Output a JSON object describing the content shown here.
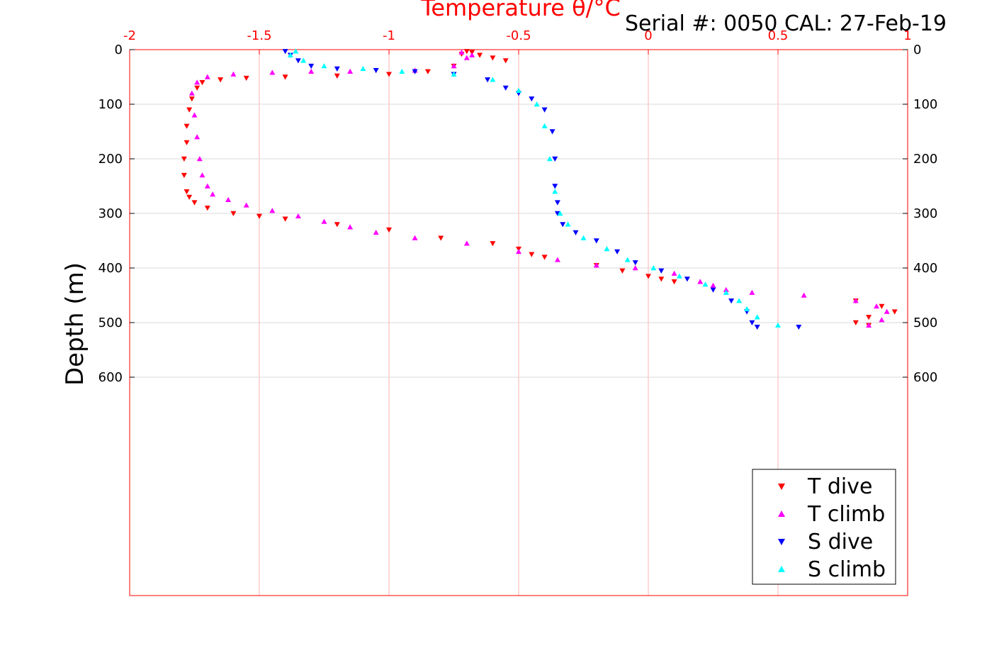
{
  "header": {
    "serial_text": "Serial #: 0050  CAL: 27-Feb-19"
  },
  "colors": {
    "T dive": "#ff0000",
    "T climb": "#ff00ff",
    "S dive": "#0000ff",
    "S climb": "#00ffff",
    "axis": "#ff0000",
    "grid": "#ffb0b0"
  },
  "chart_data": {
    "type": "scatter",
    "title": "Temperature θ/°C",
    "xlabel": "Temperature θ/°C",
    "ylabel": "Depth (m)",
    "xlim": [
      -2,
      1
    ],
    "ylim": [
      0,
      1000
    ],
    "y_reversed": true,
    "x_axis_position": "top",
    "x_ticks": [
      -2,
      -1.5,
      -1,
      -0.5,
      0,
      0.5,
      1
    ],
    "x_tick_labels": [
      "-2",
      "-1.5",
      "-1",
      "-0.5",
      "0",
      "0.5",
      "1"
    ],
    "y_ticks": [
      0,
      100,
      200,
      300,
      400,
      500,
      600
    ],
    "y_tick_labels": [
      "0",
      "100",
      "200",
      "300",
      "400",
      "500",
      "600"
    ],
    "grid": true,
    "legend_position": "bottom-right",
    "series": [
      {
        "name": "T dive",
        "marker": "triangle-down",
        "x": [
          -0.55,
          -0.6,
          -0.65,
          -0.68,
          -0.7,
          -0.72,
          -0.75,
          -0.85,
          -1.0,
          -1.2,
          -1.4,
          -1.55,
          -1.65,
          -1.72,
          -1.74,
          -1.76,
          -1.77,
          -1.78,
          -1.78,
          -1.79,
          -1.79,
          -1.78,
          -1.77,
          -1.75,
          -1.7,
          -1.6,
          -1.5,
          -1.4,
          -1.2,
          -1.0,
          -0.8,
          -0.6,
          -0.5,
          -0.45,
          -0.4,
          -0.2,
          -0.1,
          0.0,
          0.05,
          0.1,
          0.8,
          0.9,
          0.95,
          0.85,
          0.8,
          0.85
        ],
        "y": [
          20,
          15,
          10,
          5,
          3,
          8,
          30,
          40,
          45,
          48,
          50,
          52,
          55,
          60,
          70,
          90,
          110,
          140,
          170,
          200,
          230,
          260,
          270,
          280,
          290,
          300,
          305,
          310,
          320,
          330,
          345,
          355,
          365,
          375,
          380,
          395,
          405,
          415,
          420,
          425,
          460,
          470,
          480,
          490,
          500,
          505
        ]
      },
      {
        "name": "T climb",
        "marker": "triangle-up",
        "x": [
          0.85,
          0.9,
          0.92,
          0.88,
          0.8,
          0.6,
          0.4,
          0.3,
          0.25,
          0.2,
          0.1,
          -0.05,
          -0.2,
          -0.35,
          -0.5,
          -0.7,
          -0.9,
          -1.05,
          -1.15,
          -1.25,
          -1.35,
          -1.45,
          -1.55,
          -1.62,
          -1.68,
          -1.7,
          -1.72,
          -1.73,
          -1.74,
          -1.75,
          -1.76,
          -1.74,
          -1.7,
          -1.6,
          -1.45,
          -1.3,
          -1.15,
          -0.9,
          -0.75,
          -0.7,
          -0.72,
          -0.68
        ],
        "y": [
          505,
          495,
          480,
          470,
          460,
          450,
          445,
          440,
          432,
          425,
          410,
          400,
          395,
          385,
          370,
          355,
          345,
          335,
          325,
          315,
          305,
          295,
          285,
          275,
          265,
          250,
          230,
          200,
          160,
          120,
          80,
          60,
          50,
          45,
          42,
          40,
          40,
          38,
          30,
          15,
          5,
          10
        ]
      },
      {
        "name": "S dive",
        "marker": "triangle-down",
        "x": [
          -1.4,
          -1.38,
          -1.35,
          -1.3,
          -1.2,
          -1.05,
          -0.9,
          -0.75,
          -0.62,
          -0.55,
          -0.5,
          -0.45,
          -0.4,
          -0.37,
          -0.36,
          -0.36,
          -0.35,
          -0.35,
          -0.33,
          -0.28,
          -0.2,
          -0.12,
          -0.05,
          0.05,
          0.15,
          0.25,
          0.32,
          0.38,
          0.4,
          0.42,
          0.58
        ],
        "y": [
          3,
          10,
          20,
          30,
          35,
          38,
          40,
          45,
          55,
          70,
          80,
          90,
          110,
          150,
          200,
          250,
          280,
          300,
          320,
          335,
          350,
          370,
          390,
          405,
          420,
          440,
          460,
          480,
          500,
          508,
          508
        ]
      },
      {
        "name": "S climb",
        "marker": "triangle-up",
        "x": [
          0.5,
          0.42,
          0.38,
          0.35,
          0.3,
          0.22,
          0.12,
          0.02,
          -0.08,
          -0.16,
          -0.25,
          -0.31,
          -0.34,
          -0.36,
          -0.38,
          -0.4,
          -0.43,
          -0.5,
          -0.6,
          -0.75,
          -0.95,
          -1.1,
          -1.25,
          -1.33,
          -1.38,
          -1.36
        ],
        "y": [
          505,
          490,
          475,
          460,
          445,
          430,
          415,
          400,
          385,
          365,
          345,
          320,
          300,
          260,
          200,
          140,
          100,
          75,
          55,
          45,
          40,
          35,
          30,
          20,
          10,
          3
        ]
      }
    ]
  }
}
